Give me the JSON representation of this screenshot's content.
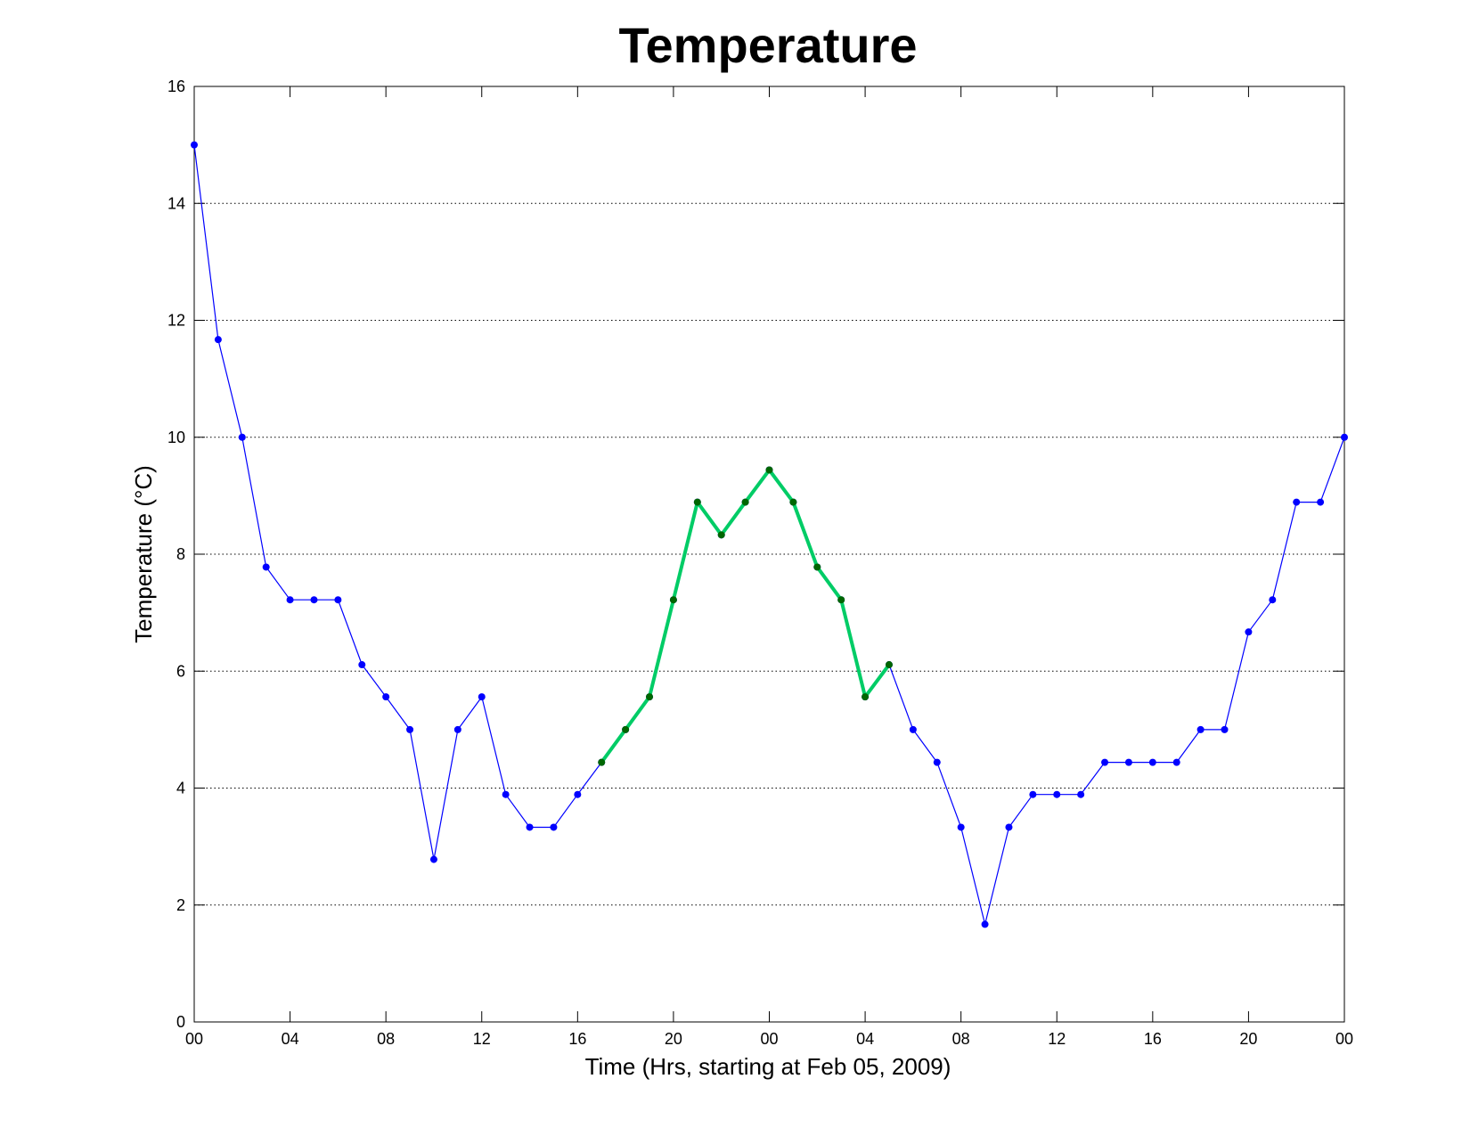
{
  "chart_data": {
    "type": "line",
    "title": "Temperature",
    "xlabel": "Time (Hrs, starting at Feb 05, 2009)",
    "ylabel": "Temperature (°C)",
    "x_ticks": [
      "00",
      "04",
      "08",
      "12",
      "16",
      "20",
      "00",
      "04",
      "08",
      "12",
      "16",
      "20",
      "00"
    ],
    "x_tick_hours": [
      0,
      4,
      8,
      12,
      16,
      20,
      24,
      28,
      32,
      36,
      40,
      44,
      48
    ],
    "y_ticks": [
      0,
      2,
      4,
      6,
      8,
      10,
      12,
      14,
      16
    ],
    "xlim": [
      0,
      48
    ],
    "ylim": [
      0,
      16
    ],
    "grid": "horizontal dotted",
    "series": [
      {
        "color": "#0000ff",
        "x": [
          0,
          1,
          2,
          3,
          4,
          5,
          6,
          7,
          8,
          9,
          10,
          11,
          12,
          13,
          14,
          15,
          16,
          17,
          18,
          19,
          20,
          21,
          22,
          23,
          24,
          25,
          26,
          27,
          28,
          29,
          30,
          31,
          32,
          33,
          34,
          35,
          36,
          37,
          38,
          39,
          40,
          41,
          42,
          43,
          44,
          45,
          46,
          47,
          48
        ],
        "y": [
          15.0,
          11.67,
          10.0,
          7.78,
          7.22,
          7.22,
          7.22,
          6.11,
          5.56,
          5.0,
          2.78,
          5.0,
          5.56,
          3.89,
          3.33,
          3.33,
          3.89,
          4.44,
          5.0,
          5.56,
          7.22,
          8.89,
          8.33,
          8.89,
          9.44,
          8.89,
          7.78,
          7.22,
          5.56,
          6.11,
          5.0,
          4.44,
          3.33,
          1.67,
          3.33,
          3.89,
          3.89,
          3.89,
          4.44,
          4.44,
          4.44,
          4.44,
          5.0,
          5.0,
          6.67,
          7.22,
          8.89,
          8.89,
          10.0
        ]
      },
      {
        "color": "#00cc66",
        "marker_color": "#006600",
        "x": [
          17,
          18,
          19,
          20,
          21,
          22,
          23,
          24,
          25,
          26,
          27,
          28,
          29
        ],
        "y": [
          4.44,
          5.0,
          5.56,
          7.22,
          8.89,
          8.33,
          8.89,
          9.44,
          8.89,
          7.78,
          7.22,
          5.56,
          6.11
        ]
      }
    ]
  }
}
